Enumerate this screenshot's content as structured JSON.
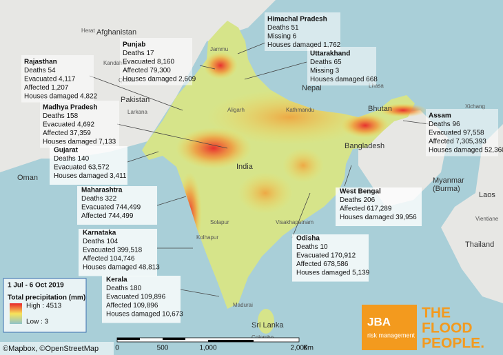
{
  "boxes": [
    {
      "title": "Himachal Pradesh",
      "lines": [
        "Deaths 51",
        "Missing 6",
        "Houses damaged 1,762"
      ]
    },
    {
      "title": "Punjab",
      "lines": [
        "Deaths 17",
        "Evacuated 8,160",
        "Affected 79,300",
        "Houses damaged 2,609"
      ]
    },
    {
      "title": "Uttarakhand",
      "lines": [
        "Deaths 65",
        "Missing 3",
        "Houses damaged 668"
      ]
    },
    {
      "title": "Rajasthan",
      "lines": [
        "Deaths 54",
        "Evacuated 4,117",
        "Affected 1,207",
        "Houses damaged 4,822"
      ]
    },
    {
      "title": "Madhya Pradesh",
      "lines": [
        "Deaths 158",
        "Evacuated 4,692",
        "Affected 37,359",
        "Houses damaged 7,133"
      ]
    },
    {
      "title": "Gujarat",
      "lines": [
        "Deaths 140",
        "Evacuated 63,572",
        "Houses damaged 3,411"
      ]
    },
    {
      "title": "Assam",
      "lines": [
        "Deaths 96",
        "Evacuated 97,558",
        "Affected 7,305,393",
        "Houses damaged 52,360"
      ]
    },
    {
      "title": "Maharashtra",
      "lines": [
        "Deaths 322",
        "Evacuated 744,499",
        "Affected 744,499"
      ]
    },
    {
      "title": "West Bengal",
      "lines": [
        "Deaths 206",
        "Affected 617,289",
        "Houses damaged 39,956"
      ]
    },
    {
      "title": "Karnataka",
      "lines": [
        "Deaths 104",
        "Evacuated 399,518",
        "Affected 104,746",
        "Houses damaged 48,813"
      ]
    },
    {
      "title": "Odisha",
      "lines": [
        "Deaths 10",
        "Evacuated 170,912",
        "Affected 678,586",
        "Houses damaged 5,139"
      ]
    },
    {
      "title": "Kerala",
      "lines": [
        "Deaths 180",
        "Evacuated 109,896",
        "Affected 109,896",
        "Houses damaged 10,673"
      ]
    }
  ],
  "legend": {
    "period": "1 Jul - 6 Oct 2019",
    "title": "Total precipitation (mm)",
    "high": "High : 4513",
    "low": "Low : 3"
  },
  "scale": {
    "ticks": [
      "0",
      "500",
      "1,000",
      "2,000"
    ],
    "unit": "Km"
  },
  "attribution": "©Mapbox, ©OpenStreetMap",
  "logo": {
    "name": "JBA",
    "sub": "risk management",
    "slogan": [
      "THE",
      "FLOOD",
      "PEOPLE."
    ]
  },
  "places": {
    "countries": [
      "Afghanistan",
      "Pakistan",
      "Nepal",
      "Bhutan",
      "Bangladesh",
      "India",
      "Myanmar",
      "(Burma)",
      "Oman",
      "Thailand",
      "Laos",
      "Sri Lanka"
    ],
    "cities": [
      "Herat",
      "Kandahar",
      "Quetta",
      "Larkana",
      "Lhasa",
      "Xichang",
      "Kathmandu",
      "Aligarh",
      "Solapur",
      "Kolhapur",
      "Visakhapatnam",
      "Madurai",
      "Colombo",
      "Vientiane",
      "Jammu"
    ]
  }
}
